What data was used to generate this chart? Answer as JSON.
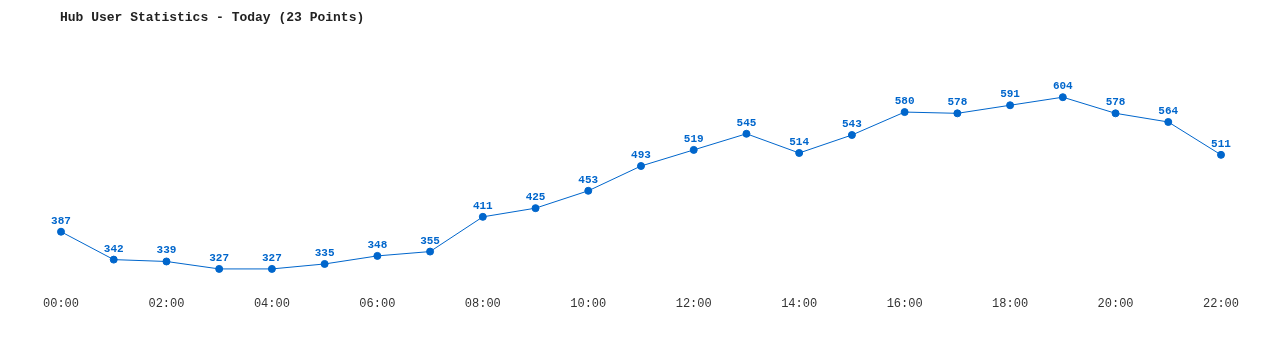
{
  "chart_data": {
    "type": "line",
    "title": "Hub User Statistics - Today (23 Points)",
    "categories": [
      "00:00",
      null,
      "02:00",
      null,
      "04:00",
      null,
      "06:00",
      null,
      "08:00",
      null,
      "10:00",
      null,
      "12:00",
      null,
      "14:00",
      null,
      "16:00",
      null,
      "18:00",
      null,
      "20:00",
      null,
      "22:00"
    ],
    "series": [
      {
        "color": "#0066cc",
        "values": [
          387,
          342,
          339,
          327,
          327,
          335,
          348,
          355,
          411,
          425,
          453,
          493,
          519,
          545,
          514,
          543,
          580,
          578,
          591,
          604,
          578,
          564,
          511
        ]
      }
    ],
    "data_labels": true,
    "marker": "circle",
    "grid": false,
    "legend": false,
    "tick_labels": "x"
  }
}
